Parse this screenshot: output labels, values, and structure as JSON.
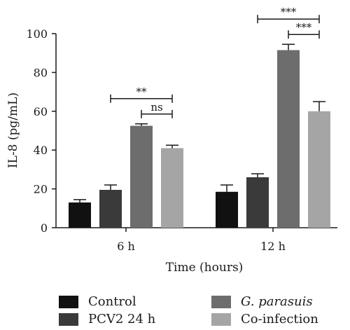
{
  "chart_data": {
    "type": "bar",
    "xlabel": "Time (hours)",
    "ylabel": "IL-8 (pg/mL)",
    "ylim": [
      0,
      100
    ],
    "yticks": [
      "0",
      "20",
      "40",
      "60",
      "80",
      "100"
    ],
    "categories": [
      "6 h",
      "12 h"
    ],
    "series": [
      {
        "name": "Control",
        "values": [
          13,
          18.5
        ],
        "errors": [
          1.5,
          3.5
        ],
        "color": "#111111"
      },
      {
        "name": "PCV2 24 h",
        "values": [
          19.5,
          26
        ],
        "errors": [
          2.5,
          1.8
        ],
        "color": "#3a3a3a"
      },
      {
        "name": "G. parasuis",
        "values": [
          52.5,
          91.5
        ],
        "errors": [
          1.0,
          3.0
        ],
        "color": "#6d6d6d"
      },
      {
        "name": "Co-infection",
        "values": [
          41,
          60
        ],
        "errors": [
          1.5,
          5.0
        ],
        "color": "#a5a5a5"
      }
    ],
    "significance": [
      {
        "category": 0,
        "from": 2,
        "to": 3,
        "label": "ns",
        "level": 1
      },
      {
        "category": 0,
        "from": 0,
        "to": 3,
        "label": "**",
        "level": 2,
        "from_anchor": "PCV2 24 h"
      },
      {
        "category": 1,
        "from": 2,
        "to": 3,
        "label": "***",
        "level": 1
      },
      {
        "category": 1,
        "from": 0,
        "to": 3,
        "label": "***",
        "level": 2,
        "from_anchor": "PCV2 24 h"
      }
    ],
    "legend_position": "bottom"
  },
  "legend": {
    "items": [
      {
        "label_a": "",
        "label_b": "Control",
        "color": "#111111"
      },
      {
        "label_a": "G.",
        "label_b": "parasuis",
        "color": "#6d6d6d"
      },
      {
        "label_a": "",
        "label_b": "PCV2 24 h",
        "color": "#3a3a3a"
      },
      {
        "label_a": "",
        "label_b": "Co-infection",
        "color": "#a5a5a5"
      }
    ]
  }
}
